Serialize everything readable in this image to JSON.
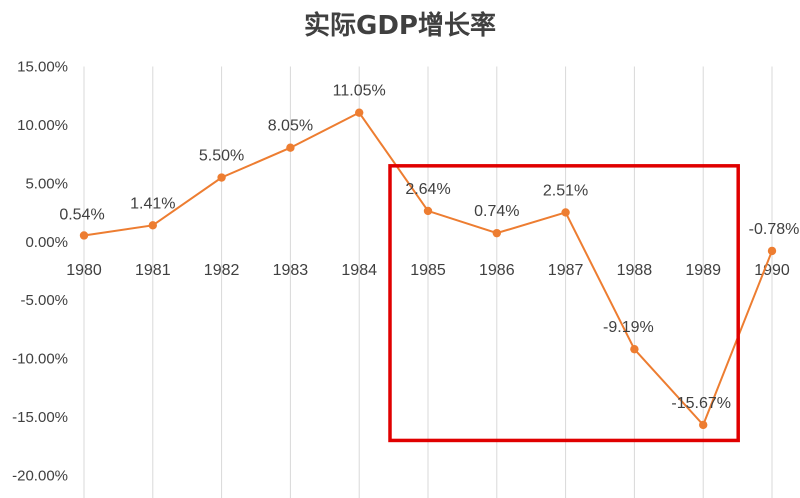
{
  "chart_data": {
    "type": "line",
    "title": "实际GDP增长率",
    "x": [
      "1980",
      "1981",
      "1982",
      "1983",
      "1984",
      "1985",
      "1986",
      "1987",
      "1988",
      "1989",
      "1990"
    ],
    "series": [
      {
        "values": [
          0.54,
          1.41,
          5.5,
          8.05,
          11.05,
          2.64,
          0.74,
          2.51,
          -9.19,
          -15.67,
          -0.78
        ],
        "labels": [
          "0.54%",
          "1.41%",
          "5.50%",
          "8.05%",
          "11.05%",
          "2.64%",
          "0.74%",
          "2.51%",
          "-9.19%",
          "-15.67%",
          "-0.78%"
        ]
      }
    ],
    "y_ticks": [
      15,
      10,
      5,
      0,
      -5,
      -10,
      -15,
      -20
    ],
    "y_tick_labels": [
      "15.00%",
      "10.00%",
      "5.00%",
      "0.00%",
      "-5.00%",
      "-10.00%",
      "-15.00%",
      "-20.00%"
    ],
    "ylim": [
      -20,
      15
    ],
    "grid": "vertical",
    "legend": "none",
    "highlight": {
      "from": "1985",
      "to": "1989",
      "y_from": -17,
      "y_to": 6.5
    },
    "colors": {
      "line": "#ed7d31",
      "highlight": "#e00000",
      "grid": "#d9d9d9"
    }
  }
}
